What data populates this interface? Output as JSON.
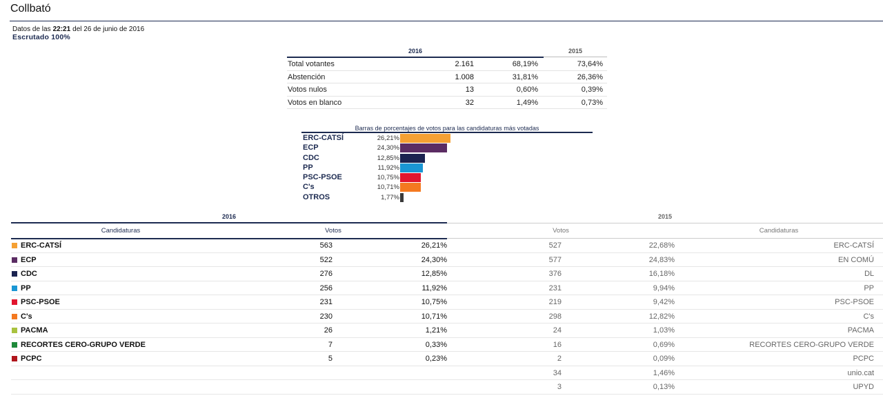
{
  "page": {
    "title": "Collbató",
    "datos_prefix": "Datos de las",
    "datos_time": "22:21",
    "datos_suffix": "del 26 de junio de 2016",
    "escrutado": "Escrutado 100%"
  },
  "summary": {
    "year_current": "2016",
    "year_previous": "2015",
    "rows": [
      {
        "label": "Total votantes",
        "value": "2.161",
        "pct": "68,19%",
        "pct_prev": "73,64%"
      },
      {
        "label": "Abstención",
        "value": "1.008",
        "pct": "31,81%",
        "pct_prev": "26,36%"
      },
      {
        "label": "Votos nulos",
        "value": "13",
        "pct": "0,60%",
        "pct_prev": "0,39%"
      },
      {
        "label": "Votos en blanco",
        "value": "32",
        "pct": "1,49%",
        "pct_prev": "0,73%"
      }
    ]
  },
  "chart_data": {
    "type": "bar",
    "title": "Barras de porcentajes de votos para las candidaturas más votadas",
    "categories": [
      "ERC-CATSÍ",
      "ECP",
      "CDC",
      "PP",
      "PSC-PSOE",
      "C's",
      "OTROS"
    ],
    "values": [
      26.21,
      24.3,
      12.85,
      11.92,
      10.75,
      10.71,
      1.77
    ],
    "value_labels": [
      "26,21%",
      "24,30%",
      "12,85%",
      "11,92%",
      "10,75%",
      "10,71%",
      "1,77%"
    ],
    "colors": [
      "#f5a033",
      "#5b2c63",
      "#1b2350",
      "#1a96d4",
      "#e1152e",
      "#f47920",
      "#3a3a3a"
    ]
  },
  "results": {
    "year_current": "2016",
    "year_previous": "2015",
    "col_candidaturas": "Candidaturas",
    "col_votos": "Votos",
    "col_votos_prev": "Votos",
    "col_candidaturas_prev": "Candidaturas",
    "rows": [
      {
        "name": "ERC-CATSÍ",
        "color": "#f5a033",
        "votes": "563",
        "pct": "26,21%",
        "votes_prev": "527",
        "pct_prev": "22,68%",
        "name_prev": "ERC-CATSÍ"
      },
      {
        "name": "ECP",
        "color": "#5b2c63",
        "votes": "522",
        "pct": "24,30%",
        "votes_prev": "577",
        "pct_prev": "24,83%",
        "name_prev": "EN COMÚ"
      },
      {
        "name": "CDC",
        "color": "#1b2350",
        "votes": "276",
        "pct": "12,85%",
        "votes_prev": "376",
        "pct_prev": "16,18%",
        "name_prev": "DL"
      },
      {
        "name": "PP",
        "color": "#1a96d4",
        "votes": "256",
        "pct": "11,92%",
        "votes_prev": "231",
        "pct_prev": "9,94%",
        "name_prev": "PP"
      },
      {
        "name": "PSC-PSOE",
        "color": "#e1152e",
        "votes": "231",
        "pct": "10,75%",
        "votes_prev": "219",
        "pct_prev": "9,42%",
        "name_prev": "PSC-PSOE"
      },
      {
        "name": "C's",
        "color": "#f47920",
        "votes": "230",
        "pct": "10,71%",
        "votes_prev": "298",
        "pct_prev": "12,82%",
        "name_prev": "C's"
      },
      {
        "name": "PACMA",
        "color": "#a9c23f",
        "votes": "26",
        "pct": "1,21%",
        "votes_prev": "24",
        "pct_prev": "1,03%",
        "name_prev": "PACMA"
      },
      {
        "name": "RECORTES CERO-GRUPO VERDE",
        "color": "#1f8a3a",
        "votes": "7",
        "pct": "0,33%",
        "votes_prev": "16",
        "pct_prev": "0,69%",
        "name_prev": "RECORTES CERO-GRUPO VERDE"
      },
      {
        "name": "PCPC",
        "color": "#b0151c",
        "votes": "5",
        "pct": "0,23%",
        "votes_prev": "2",
        "pct_prev": "0,09%",
        "name_prev": "PCPC"
      },
      {
        "name": "",
        "color": "",
        "votes": "",
        "pct": "",
        "votes_prev": "34",
        "pct_prev": "1,46%",
        "name_prev": "unio.cat"
      },
      {
        "name": "",
        "color": "",
        "votes": "",
        "pct": "",
        "votes_prev": "3",
        "pct_prev": "0,13%",
        "name_prev": "UPYD"
      }
    ]
  }
}
